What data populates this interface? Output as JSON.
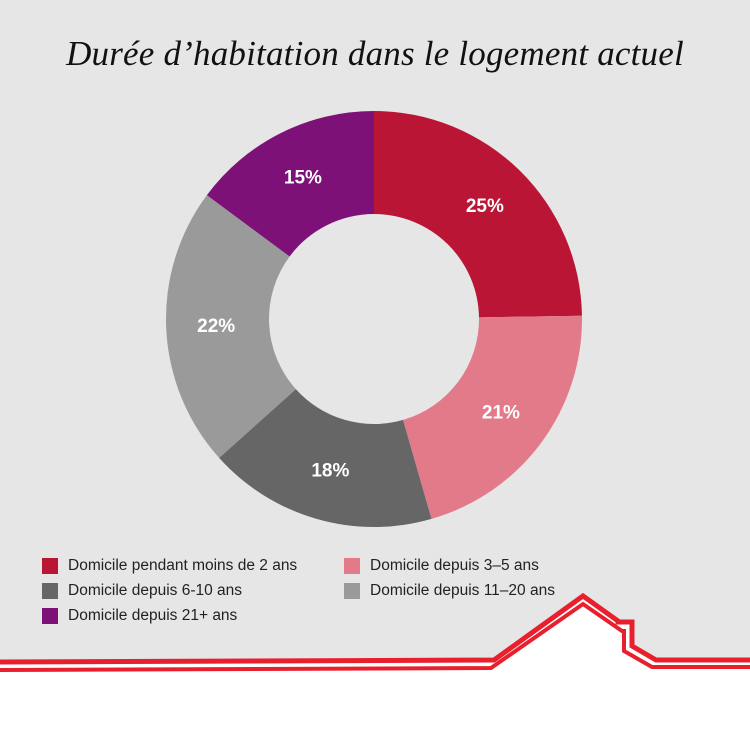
{
  "title": "Durée d’habitation dans le logement actuel",
  "chart_data": {
    "type": "pie",
    "style": "donut",
    "title": "Durée d’habitation dans le logement actuel",
    "unit": "%",
    "legend_position": "bottom",
    "slices": [
      {
        "label": "Domicile pendant moins de 2 ans",
        "value": 25,
        "display": "25%",
        "color": "#bb1535"
      },
      {
        "label": "Domicile depuis 3–5 ans",
        "value": 21,
        "display": "21%",
        "color": "#e27a8a"
      },
      {
        "label": "Domicile depuis 6-10 ans",
        "value": 18,
        "display": "18%",
        "color": "#666666"
      },
      {
        "label": "Domicile depuis 11–20 ans",
        "value": 22,
        "display": "22%",
        "color": "#9a9a9a"
      },
      {
        "label": "Domicile depuis 21+ ans",
        "value": 15,
        "display": "15%",
        "color": "#7d1177"
      }
    ]
  },
  "colors": {
    "background": "#e6e6e6",
    "roof_line": "#e8202e",
    "text": "#222222"
  },
  "decoration": {
    "roof_icon": "house-roof-outline-icon"
  }
}
